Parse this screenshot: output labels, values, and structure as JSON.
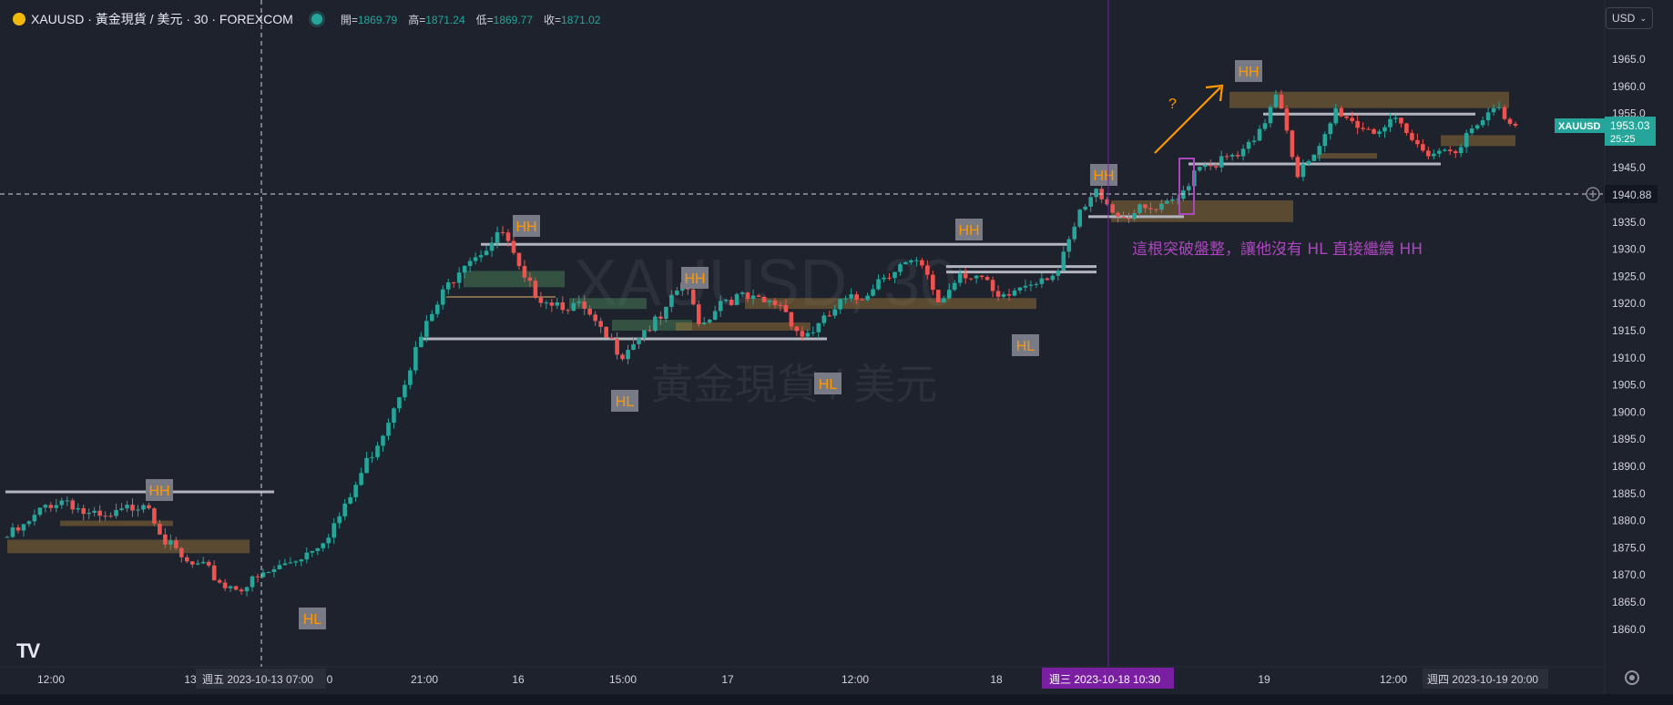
{
  "header": {
    "symbol": "XAUUSD · 黃金現貨 / 美元 · 30 · FOREXCOM",
    "open_label": "開=",
    "open": "1869.79",
    "high_label": "高=",
    "high": "1871.24",
    "low_label": "低=",
    "low": "1869.77",
    "close_label": "收=",
    "close": "1871.02"
  },
  "currency_select": "USD",
  "watermark": {
    "symbol": "XAUUSD, 30",
    "name": "黃金現貨 / 美元"
  },
  "annotation_text": "這根突破盤整，讓他沒有 HL 直接繼續 HH",
  "question_mark": "?",
  "crosshair_price_label": "1940.88",
  "price_label": {
    "symbol": "XAUUSD",
    "price": "1953.03",
    "countdown": "25:25"
  },
  "time_labels": {
    "vertical_cursor": "週五  2023-10-13    07:00",
    "purple_line": "週三  2023-10-18    10:30",
    "right": "週四  2023-10-19    20:00"
  },
  "colors": {
    "up": "#26a69a",
    "down": "#ef5350",
    "background": "#1e222d",
    "accent_purple": "#9c27b0",
    "swing_label_text": "#ff9800"
  },
  "chart_data": {
    "type": "candlestick",
    "symbol": "XAUUSD",
    "timeframe": "30",
    "ylim": [
      1857,
      1968
    ],
    "y_ticks": [
      1860,
      1865,
      1870,
      1875,
      1880,
      1885,
      1890,
      1895,
      1900,
      1905,
      1910,
      1915,
      1920,
      1925,
      1930,
      1935,
      1940,
      1945,
      1950,
      1955,
      1960,
      1965
    ],
    "x_ticks": [
      "12:00",
      "13",
      "0",
      "21:00",
      "16",
      "15:00",
      "17",
      "12:00",
      "18",
      "19",
      "12:00",
      "20"
    ],
    "swing_labels": [
      "HH",
      "HL",
      "HH",
      "HH",
      "HL",
      "HL",
      "HH",
      "HL",
      "HH",
      "HH"
    ],
    "path": [
      1877,
      1879,
      1883,
      1884,
      1881,
      1880,
      1882,
      1884,
      1876,
      1872,
      1871,
      1868,
      1868,
      1870,
      1872,
      1874,
      1877,
      1882,
      1890,
      1897,
      1906,
      1915,
      1922,
      1928,
      1930,
      1933,
      1924,
      1921,
      1920,
      1919,
      1914,
      1911,
      1915,
      1917,
      1924,
      1916,
      1921,
      1921,
      1920,
      1920,
      1914,
      1916,
      1920,
      1921,
      1925,
      1927,
      1927,
      1920,
      1926,
      1925,
      1920,
      1923,
      1925,
      1926,
      1936,
      1941,
      1936,
      1937,
      1937,
      1939,
      1946,
      1946,
      1947,
      1950,
      1960,
      1944,
      1947,
      1956,
      1953,
      1952,
      1953,
      1949,
      1948,
      1949,
      1952,
      1956,
      1953
    ]
  }
}
